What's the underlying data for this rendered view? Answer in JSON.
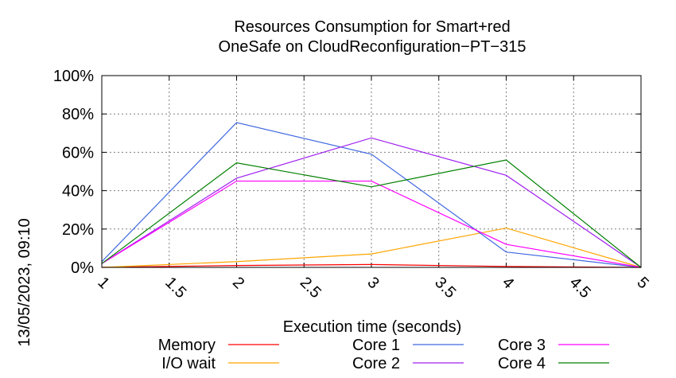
{
  "chart_data": {
    "type": "line",
    "title": "Resources Consumption for Smart+red",
    "subtitle": "OneSafe on CloudReconfiguration−PT−315",
    "xlabel": "Execution time (seconds)",
    "ylabel": "",
    "timestamp": "13/05/2023, 09:10",
    "xlim": [
      1,
      5
    ],
    "ylim": [
      0,
      100
    ],
    "x_ticks": [
      "1",
      "1.5",
      "2",
      "2.5",
      "3",
      "3.5",
      "4",
      "4.5",
      "5"
    ],
    "y_ticks": [
      "0%",
      "20%",
      "40%",
      "60%",
      "80%",
      "100%"
    ],
    "grid": true,
    "legend_position": "bottom",
    "x": [
      1,
      2,
      3,
      4,
      5
    ],
    "series": [
      {
        "name": "Memory",
        "color": "#ff0000",
        "values": [
          0,
          1,
          1.5,
          0.5,
          0
        ]
      },
      {
        "name": "I/O wait",
        "color": "#ffa500",
        "values": [
          0,
          3,
          7,
          20.5,
          0
        ]
      },
      {
        "name": "Core 1",
        "color": "#4169e1",
        "values": [
          3,
          75.5,
          59,
          8,
          0
        ]
      },
      {
        "name": "Core 2",
        "color": "#a020f0",
        "values": [
          2,
          46.5,
          67.5,
          48,
          0
        ]
      },
      {
        "name": "Core 3",
        "color": "#ff00ff",
        "values": [
          2,
          45,
          45,
          12,
          0
        ]
      },
      {
        "name": "Core 4",
        "color": "#008000",
        "values": [
          2,
          54.5,
          42,
          56,
          0
        ]
      }
    ]
  }
}
